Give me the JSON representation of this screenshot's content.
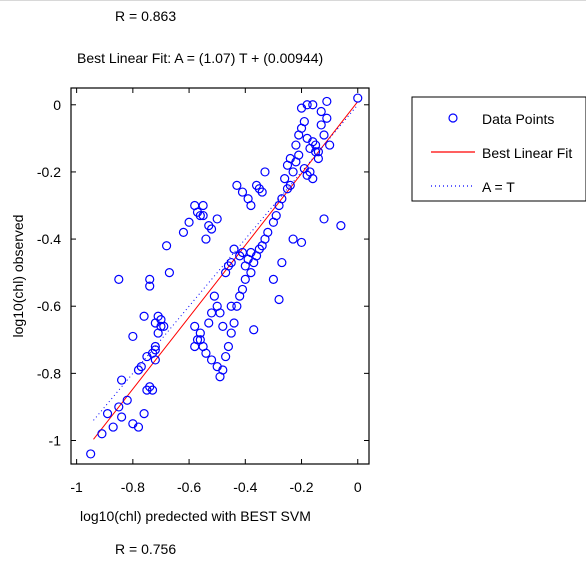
{
  "header": {
    "r_top": "R = 0.863",
    "title": "Best Linear Fit:  A = (1.07) T + (0.00944)"
  },
  "footer": {
    "r_bottom": "R = 0.756"
  },
  "colors": {
    "points": "#0000ff",
    "fit_line": "#ff0000",
    "identity_line": "#0000ff"
  },
  "chart_data": {
    "type": "scatter",
    "title": "Best Linear Fit:  A = (1.07) T + (0.00944)",
    "xlabel": "log10(chl) predected with BEST SVM",
    "ylabel": "log10(chl) observed",
    "xlim": [
      -1.02,
      0.04
    ],
    "ylim": [
      -1.07,
      0.05
    ],
    "xticks": [
      -1,
      -0.8,
      -0.6,
      -0.4,
      -0.2,
      0
    ],
    "yticks": [
      0,
      -0.2,
      -0.4,
      -0.6,
      -0.8,
      -1
    ],
    "xtick_labels": [
      "-1",
      "-0.8",
      "-0.6",
      "-0.4",
      "-0.2",
      "0"
    ],
    "ytick_labels": [
      "0",
      "-0.2",
      "-0.4",
      "-0.6",
      "-0.8",
      "-1"
    ],
    "grid": false,
    "legend_position": "outside-right",
    "legend": [
      "Data Points",
      "Best Linear Fit",
      "A = T"
    ],
    "series": [
      {
        "name": "Data Points",
        "marker": "o",
        "x": [
          -0.95,
          -0.91,
          -0.89,
          -0.87,
          -0.85,
          -0.84,
          -0.82,
          -0.8,
          -0.78,
          -0.76,
          -0.75,
          -0.74,
          -0.73,
          -0.72,
          -0.72,
          -0.71,
          -0.7,
          -0.7,
          -0.69,
          -0.68,
          -0.67,
          -0.74,
          -0.74,
          -0.71,
          -0.72,
          -0.76,
          -0.75,
          -0.77,
          -0.78,
          -0.73,
          -0.72,
          -0.85,
          -0.84,
          -0.8,
          -0.62,
          -0.6,
          -0.58,
          -0.57,
          -0.56,
          -0.55,
          -0.55,
          -0.54,
          -0.53,
          -0.52,
          -0.5,
          -0.58,
          -0.57,
          -0.56,
          -0.55,
          -0.54,
          -0.52,
          -0.5,
          -0.49,
          -0.48,
          -0.47,
          -0.46,
          -0.45,
          -0.44,
          -0.43,
          -0.42,
          -0.41,
          -0.4,
          -0.4,
          -0.39,
          -0.38,
          -0.38,
          -0.37,
          -0.36,
          -0.35,
          -0.34,
          -0.33,
          -0.32,
          -0.3,
          -0.29,
          -0.28,
          -0.27,
          -0.26,
          -0.25,
          -0.24,
          -0.23,
          -0.22,
          -0.21,
          -0.2,
          -0.19,
          -0.18,
          -0.17,
          -0.16,
          -0.15,
          -0.14,
          -0.13,
          -0.12,
          -0.11,
          -0.1,
          -0.21,
          -0.22,
          -0.19,
          -0.18,
          -0.17,
          -0.16,
          -0.15,
          -0.14,
          -0.25,
          -0.24,
          -0.35,
          -0.36,
          -0.34,
          -0.33,
          -0.38,
          -0.41,
          -0.42,
          -0.44,
          -0.45,
          -0.46,
          -0.47,
          -0.5,
          -0.52,
          -0.53,
          -0.56,
          -0.58,
          -0.48,
          -0.37,
          -0.3,
          -0.28,
          -0.23,
          -0.2,
          -0.27,
          -0.12,
          -0.06,
          0.0,
          -0.13,
          -0.16,
          -0.18,
          -0.2,
          -0.11,
          -0.43,
          -0.41,
          -0.39,
          -0.45,
          -0.49,
          -0.51
        ],
        "y": [
          -1.04,
          -0.98,
          -0.92,
          -0.96,
          -0.9,
          -0.93,
          -0.88,
          -0.95,
          -0.96,
          -0.92,
          -0.85,
          -0.84,
          -0.74,
          -0.76,
          -0.73,
          -0.68,
          -0.66,
          -0.64,
          -0.66,
          -0.42,
          -0.5,
          -0.52,
          -0.54,
          -0.63,
          -0.65,
          -0.63,
          -0.75,
          -0.78,
          -0.79,
          -0.85,
          -0.72,
          -0.52,
          -0.82,
          -0.69,
          -0.38,
          -0.35,
          -0.3,
          -0.32,
          -0.33,
          -0.33,
          -0.3,
          -0.4,
          -0.36,
          -0.37,
          -0.34,
          -0.66,
          -0.7,
          -0.68,
          -0.72,
          -0.74,
          -0.76,
          -0.78,
          -0.81,
          -0.79,
          -0.75,
          -0.72,
          -0.68,
          -0.65,
          -0.6,
          -0.57,
          -0.55,
          -0.52,
          -0.48,
          -0.46,
          -0.44,
          -0.5,
          -0.47,
          -0.45,
          -0.43,
          -0.42,
          -0.4,
          -0.38,
          -0.35,
          -0.33,
          -0.3,
          -0.28,
          -0.22,
          -0.18,
          -0.16,
          -0.2,
          -0.12,
          -0.09,
          -0.07,
          -0.05,
          -0.1,
          -0.13,
          -0.11,
          -0.12,
          -0.14,
          -0.06,
          -0.09,
          -0.04,
          -0.12,
          -0.15,
          -0.17,
          -0.19,
          -0.21,
          -0.2,
          -0.22,
          -0.14,
          -0.16,
          -0.25,
          -0.24,
          -0.25,
          -0.24,
          -0.26,
          -0.2,
          -0.3,
          -0.44,
          -0.45,
          -0.43,
          -0.47,
          -0.48,
          -0.5,
          -0.6,
          -0.62,
          -0.65,
          -0.7,
          -0.72,
          -0.66,
          -0.67,
          -0.52,
          -0.58,
          -0.4,
          -0.41,
          -0.47,
          -0.34,
          -0.36,
          0.02,
          -0.02,
          0.0,
          -0.0,
          -0.01,
          0.01,
          -0.24,
          -0.26,
          -0.28,
          -0.6,
          -0.62,
          -0.57
        ]
      },
      {
        "name": "Best Linear Fit",
        "type": "line",
        "slope": 1.07,
        "intercept": 0.00944,
        "x": [
          -0.94,
          0.0
        ]
      },
      {
        "name": "A = T",
        "type": "line",
        "style": "dotted",
        "x": [
          -0.94,
          0.0
        ],
        "y": [
          -0.94,
          0.0
        ]
      }
    ]
  }
}
